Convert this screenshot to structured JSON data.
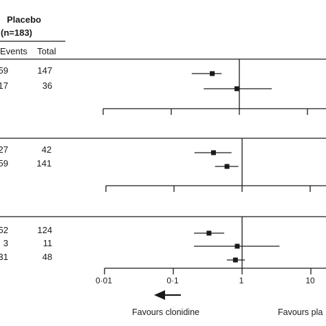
{
  "header": {
    "group_line1": "Placebo",
    "group_line2": "(n=183)",
    "col_events": "Events",
    "col_total": "Total"
  },
  "chart_data": {
    "type": "forest",
    "xscale": "log",
    "xlim": [
      0.01,
      10
    ],
    "ticks": [
      "0·01",
      "0·1",
      "1",
      "10"
    ],
    "tick_values": [
      0.01,
      0.1,
      1,
      10
    ],
    "reference_line": 1,
    "favours_left": "Favours clonidine",
    "favours_right": "Favours pla",
    "panels": [
      {
        "rows": [
          {
            "events": "59",
            "total": "147",
            "estimate": 0.4,
            "ci": [
              0.2,
              0.55
            ]
          },
          {
            "events": "17",
            "total": "36",
            "estimate": 0.92,
            "ci": [
              0.3,
              3.0
            ]
          }
        ]
      },
      {
        "rows": [
          {
            "events": "27",
            "total": "42",
            "estimate": 0.38,
            "ci": [
              0.2,
              0.7
            ]
          },
          {
            "events": "59",
            "total": "141",
            "estimate": 0.6,
            "ci": [
              0.4,
              0.88
            ]
          }
        ]
      },
      {
        "rows": [
          {
            "events": "52",
            "total": "124",
            "estimate": 0.33,
            "ci": [
              0.2,
              0.55
            ]
          },
          {
            "events": "3",
            "total": "11",
            "estimate": 0.85,
            "ci": [
              0.2,
              3.5
            ]
          },
          {
            "events": "31",
            "total": "48",
            "estimate": 0.8,
            "ci": [
              0.6,
              1.1
            ]
          }
        ]
      }
    ]
  }
}
